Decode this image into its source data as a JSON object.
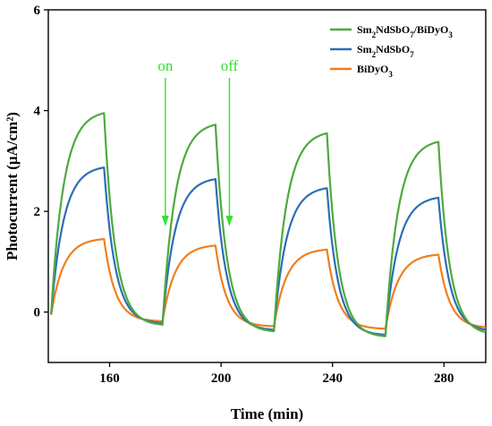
{
  "chart_data": {
    "type": "line",
    "title": "",
    "xlabel": "Time (min)",
    "ylabel": "Photocurrent (μA/cm²)",
    "xlim": [
      138,
      295
    ],
    "ylim": [
      -1,
      6
    ],
    "xticks": [
      160,
      200,
      240,
      280
    ],
    "yticks": [
      0,
      2,
      4,
      6
    ],
    "grid": false,
    "legend_position": "top-right",
    "series": [
      {
        "name": "Sm₂NdSbO₇/BiDyO₃",
        "legend_parts": [
          [
            "Sm",
            ""
          ],
          [
            "2",
            "sub"
          ],
          [
            "NdSbO",
            ""
          ],
          [
            "7",
            "sub"
          ],
          [
            "/BiDyO",
            ""
          ],
          [
            "3",
            "sub"
          ]
        ],
        "color": "#4daa3e",
        "cycles": [
          {
            "on": 139,
            "off": 158,
            "start": -0.05,
            "peak": 3.95,
            "end": -0.25
          },
          {
            "on": 179,
            "off": 198,
            "start": -0.25,
            "peak": 3.72,
            "end": -0.38
          },
          {
            "on": 219,
            "off": 238,
            "start": -0.38,
            "peak": 3.55,
            "end": -0.48
          },
          {
            "on": 259,
            "off": 278,
            "start": -0.48,
            "peak": 3.38,
            "end": -0.4
          }
        ]
      },
      {
        "name": "Sm₂NdSbO₇",
        "legend_parts": [
          [
            "Sm",
            ""
          ],
          [
            "2",
            "sub"
          ],
          [
            "NdSbO",
            ""
          ],
          [
            "7",
            "sub"
          ]
        ],
        "color": "#2e6db5",
        "cycles": [
          {
            "on": 139,
            "off": 158,
            "start": -0.05,
            "peak": 2.87,
            "end": -0.22
          },
          {
            "on": 179,
            "off": 198,
            "start": -0.22,
            "peak": 2.64,
            "end": -0.35
          },
          {
            "on": 219,
            "off": 238,
            "start": -0.35,
            "peak": 2.46,
            "end": -0.45
          },
          {
            "on": 259,
            "off": 278,
            "start": -0.45,
            "peak": 2.27,
            "end": -0.35
          }
        ]
      },
      {
        "name": "BiDyO₃",
        "legend_parts": [
          [
            "BiDyO",
            ""
          ],
          [
            "3",
            "sub"
          ]
        ],
        "color": "#f07f1e",
        "cycles": [
          {
            "on": 139,
            "off": 158,
            "start": -0.05,
            "peak": 1.45,
            "end": -0.18
          },
          {
            "on": 179,
            "off": 198,
            "start": -0.18,
            "peak": 1.32,
            "end": -0.28
          },
          {
            "on": 219,
            "off": 238,
            "start": -0.28,
            "peak": 1.24,
            "end": -0.33
          },
          {
            "on": 259,
            "off": 278,
            "start": -0.33,
            "peak": 1.14,
            "end": -0.3
          }
        ]
      }
    ],
    "annotations": [
      {
        "text": "on",
        "x": 180,
        "y_top": 4.65,
        "y_tip": 1.7,
        "color": "#33e033"
      },
      {
        "text": "off",
        "x": 203,
        "y_top": 4.65,
        "y_tip": 1.7,
        "color": "#33e033"
      }
    ]
  }
}
